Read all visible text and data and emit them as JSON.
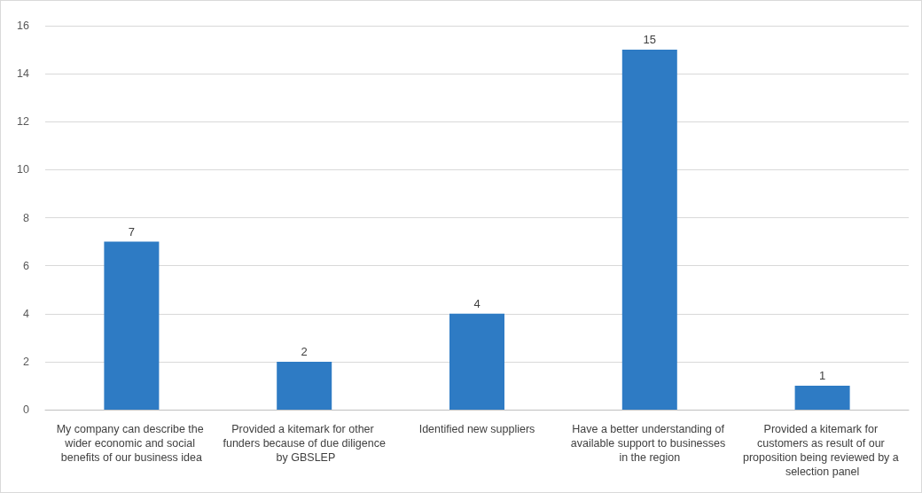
{
  "chart_data": {
    "type": "bar",
    "categories": [
      "My company can describe the wider economic and social benefits of our business idea",
      "Provided a kitemark for other funders because of due diligence by GBSLEP",
      "Identified new suppliers",
      "Have a better understanding of available support to businesses in the region",
      "Provided a kitemark for customers as result of our proposition being reviewed by a selection panel"
    ],
    "values": [
      7,
      2,
      4,
      15,
      1
    ],
    "color": "#2e7bc4",
    "ylim": [
      0,
      16
    ],
    "yticks": [
      0,
      2,
      4,
      6,
      8,
      10,
      12,
      14,
      16
    ],
    "grid": "y",
    "data_labels": true
  }
}
